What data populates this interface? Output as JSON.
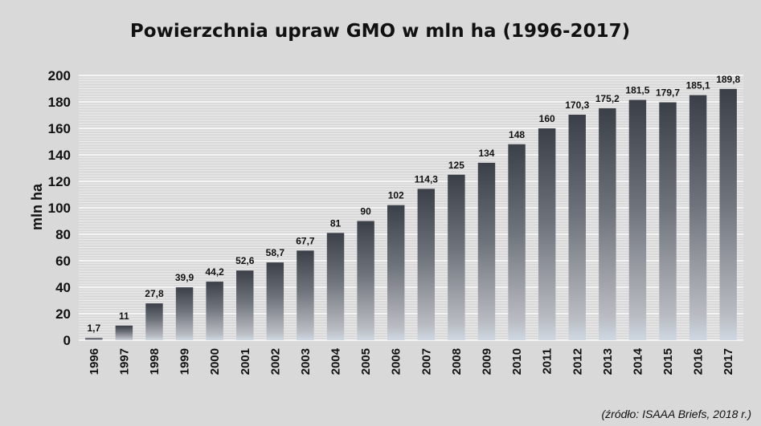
{
  "chart_data": {
    "type": "bar",
    "title": "Powierzchnia upraw GMO w mln ha (1996-2017)",
    "ylabel": "mln ha",
    "xlabel": "",
    "ylim": [
      0,
      200
    ],
    "yticks": [
      0,
      20,
      40,
      60,
      80,
      100,
      120,
      140,
      160,
      180,
      200
    ],
    "grid": true,
    "legend": "none",
    "categories": [
      "1996",
      "1997",
      "1998",
      "1999",
      "2000",
      "2001",
      "2002",
      "2003",
      "2004",
      "2005",
      "2006",
      "2007",
      "2008",
      "2009",
      "2010",
      "2011",
      "2012",
      "2013",
      "2014",
      "2015",
      "2016",
      "2017"
    ],
    "values": [
      1.7,
      11,
      27.8,
      39.9,
      44.2,
      52.6,
      58.7,
      67.7,
      81,
      90,
      102,
      114.3,
      125,
      134,
      148,
      160,
      170.3,
      175.2,
      181.5,
      179.7,
      185.1,
      189.8
    ],
    "data_labels": [
      "1,7",
      "11",
      "27,8",
      "39,9",
      "44,2",
      "52,6",
      "58,7",
      "67,7",
      "81",
      "90",
      "102",
      "114,3",
      "125",
      "134",
      "148",
      "160",
      "170,3",
      "175,2",
      "181,5",
      "179,7",
      "185,1",
      "189,8"
    ],
    "source": "(źródło: ISAAA Briefs, 2018 r.)",
    "colors": {
      "bar_top": "#3b3f48",
      "bar_bottom": "#c7ccd3",
      "gridline": "#ffffff",
      "background": "#d9d9d9"
    }
  }
}
